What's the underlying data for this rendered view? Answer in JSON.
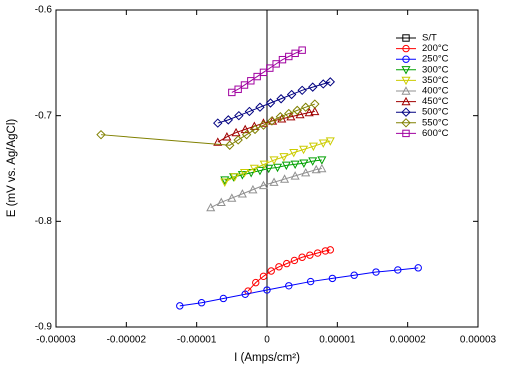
{
  "chart_data": {
    "type": "scatter",
    "xlabel": "I (Amps/cm²)",
    "ylabel": "E (mV vs. Ag/AgCl)",
    "xlim": [
      -3e-05,
      3e-05
    ],
    "xticks": [
      -3e-05,
      -2e-05,
      -1e-05,
      0,
      1e-05,
      2e-05,
      3e-05
    ],
    "ylim": [
      -0.9,
      -0.6
    ],
    "yticks": [
      -0.9,
      -0.8,
      -0.7,
      -0.6
    ],
    "legend": "upper right",
    "series": [
      {
        "name": "S/T",
        "color": "#000000",
        "marker": "square",
        "x": [],
        "values": []
      },
      {
        "name": "200°C",
        "color": "#ff0000",
        "marker": "circle",
        "x": [
          -2.7e-06,
          -1.6e-06,
          -5e-07,
          6e-07,
          1.7e-06,
          2.8e-06,
          3.9e-06,
          5e-06,
          6.1e-06,
          7.2e-06,
          8.3e-06,
          9e-06
        ],
        "values": [
          -0.866,
          -0.858,
          -0.852,
          -0.847,
          -0.843,
          -0.84,
          -0.837,
          -0.834,
          -0.832,
          -0.83,
          -0.828,
          -0.827
        ]
      },
      {
        "name": "250°C",
        "color": "#0000ff",
        "marker": "circle",
        "x": [
          -1.24e-05,
          -9.3e-06,
          -6.2e-06,
          -3.1e-06,
          0,
          3.1e-06,
          6.2e-06,
          9.3e-06,
          1.24e-05,
          1.55e-05,
          1.86e-05,
          2.15e-05
        ],
        "values": [
          -0.88,
          -0.877,
          -0.873,
          -0.869,
          -0.865,
          -0.861,
          -0.857,
          -0.854,
          -0.851,
          -0.848,
          -0.846,
          -0.844
        ]
      },
      {
        "name": "300°C",
        "color": "#00a000",
        "marker": "triangle-down",
        "x": [
          -6e-06,
          -4.75e-06,
          -3.5e-06,
          -2.25e-06,
          -1e-06,
          2.5e-07,
          1.5e-06,
          2.75e-06,
          4e-06,
          5.25e-06,
          6.5e-06,
          7.8e-06
        ],
        "values": [
          -0.761,
          -0.758,
          -0.756,
          -0.754,
          -0.752,
          -0.75,
          -0.749,
          -0.747,
          -0.746,
          -0.745,
          -0.743,
          -0.742
        ]
      },
      {
        "name": "350°C",
        "color": "#cccc00",
        "marker": "triangle-down",
        "x": [
          -6e-06,
          -4.6e-06,
          -3.2e-06,
          -1.8e-06,
          -4e-07,
          1e-06,
          2.4e-06,
          3.8e-06,
          5.2e-06,
          6.6e-06,
          8e-06,
          9e-06
        ],
        "values": [
          -0.763,
          -0.758,
          -0.754,
          -0.75,
          -0.746,
          -0.742,
          -0.739,
          -0.735,
          -0.732,
          -0.729,
          -0.726,
          -0.724
        ]
      },
      {
        "name": "400°C",
        "color": "#909090",
        "marker": "triangle-up",
        "x": [
          -8e-06,
          -6.5e-06,
          -5e-06,
          -3.5e-06,
          -2e-06,
          -5e-07,
          1e-06,
          2.5e-06,
          4e-06,
          5.5e-06,
          7e-06,
          7.8e-06
        ],
        "values": [
          -0.787,
          -0.782,
          -0.778,
          -0.774,
          -0.77,
          -0.766,
          -0.763,
          -0.76,
          -0.757,
          -0.754,
          -0.751,
          -0.75
        ]
      },
      {
        "name": "450°C",
        "color": "#a00000",
        "marker": "triangle-up",
        "x": [
          -7e-06,
          -5.7e-06,
          -4.4e-06,
          -3.1e-06,
          -1.8e-06,
          -5e-07,
          8e-07,
          2.1e-06,
          3.4e-06,
          4.7e-06,
          6e-06,
          6.8e-06
        ],
        "values": [
          -0.725,
          -0.72,
          -0.716,
          -0.713,
          -0.71,
          -0.707,
          -0.705,
          -0.703,
          -0.701,
          -0.699,
          -0.697,
          -0.696
        ]
      },
      {
        "name": "500°C",
        "color": "#000080",
        "marker": "diamond",
        "x": [
          -7e-06,
          -5.5e-06,
          -4e-06,
          -2.5e-06,
          -1e-06,
          5e-07,
          2e-06,
          3.5e-06,
          5e-06,
          6.5e-06,
          8e-06,
          9e-06
        ],
        "values": [
          -0.707,
          -0.704,
          -0.7,
          -0.696,
          -0.692,
          -0.688,
          -0.684,
          -0.68,
          -0.676,
          -0.673,
          -0.67,
          -0.668
        ]
      },
      {
        "name": "550°C",
        "color": "#808000",
        "marker": "diamond",
        "x": [
          -2.36e-05,
          -5.3e-06,
          -4.1e-06,
          -2.9e-06,
          -1.7e-06,
          -5e-07,
          7e-07,
          1.9e-06,
          3.1e-06,
          4.3e-06,
          5.5e-06,
          6.8e-06
        ],
        "values": [
          -0.718,
          -0.728,
          -0.723,
          -0.718,
          -0.713,
          -0.709,
          -0.705,
          -0.701,
          -0.698,
          -0.695,
          -0.692,
          -0.689
        ]
      },
      {
        "name": "600°C",
        "color": "#a000a0",
        "marker": "square",
        "x": [
          -5e-06,
          -4.1e-06,
          -3.2e-06,
          -2.3e-06,
          -1.4e-06,
          -5e-07,
          4e-07,
          1.3e-06,
          2.2e-06,
          3.1e-06,
          4e-06,
          5e-06
        ],
        "values": [
          -0.678,
          -0.675,
          -0.671,
          -0.667,
          -0.663,
          -0.659,
          -0.655,
          -0.651,
          -0.647,
          -0.644,
          -0.641,
          -0.638
        ]
      }
    ]
  }
}
